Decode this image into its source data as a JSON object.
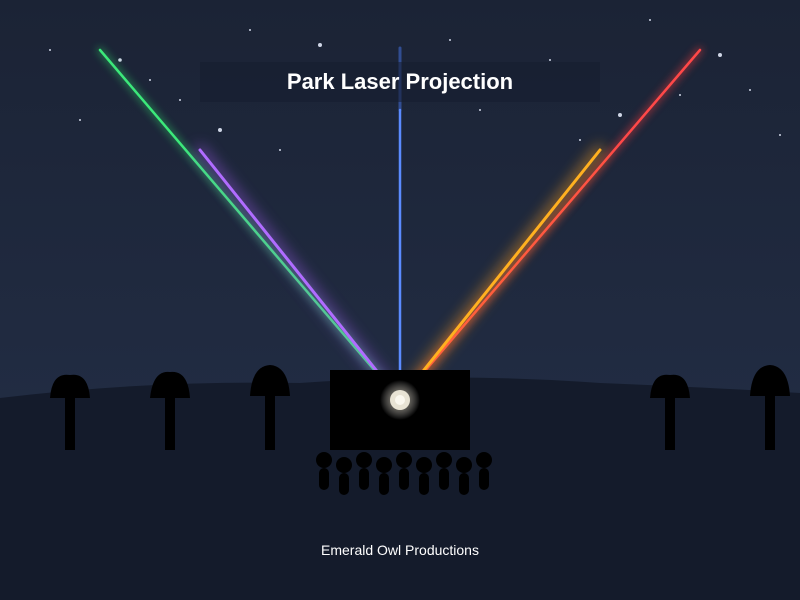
{
  "title": "Park Laser Projection",
  "credit": "Emerald Owl Productions",
  "colors": {
    "sky_top": "#1c2437",
    "sky_bottom": "#232d44",
    "ground": "#141b2b",
    "silhouette": "#000000",
    "laser_green": "#2ee06a",
    "laser_purple": "#a35cf0",
    "laser_blue": "#4a7dff",
    "laser_orange": "#ffa11a",
    "laser_red": "#ff3b3b",
    "projector_glow": "#f0ece0"
  },
  "lasers": [
    {
      "name": "green-laser-beam",
      "color": "#2ee06a"
    },
    {
      "name": "purple-laser-beam",
      "color": "#a35cf0"
    },
    {
      "name": "blue-laser-beam",
      "color": "#4a7dff"
    },
    {
      "name": "orange-laser-beam",
      "color": "#ffa11a"
    },
    {
      "name": "red-laser-beam",
      "color": "#ff3b3b"
    }
  ]
}
